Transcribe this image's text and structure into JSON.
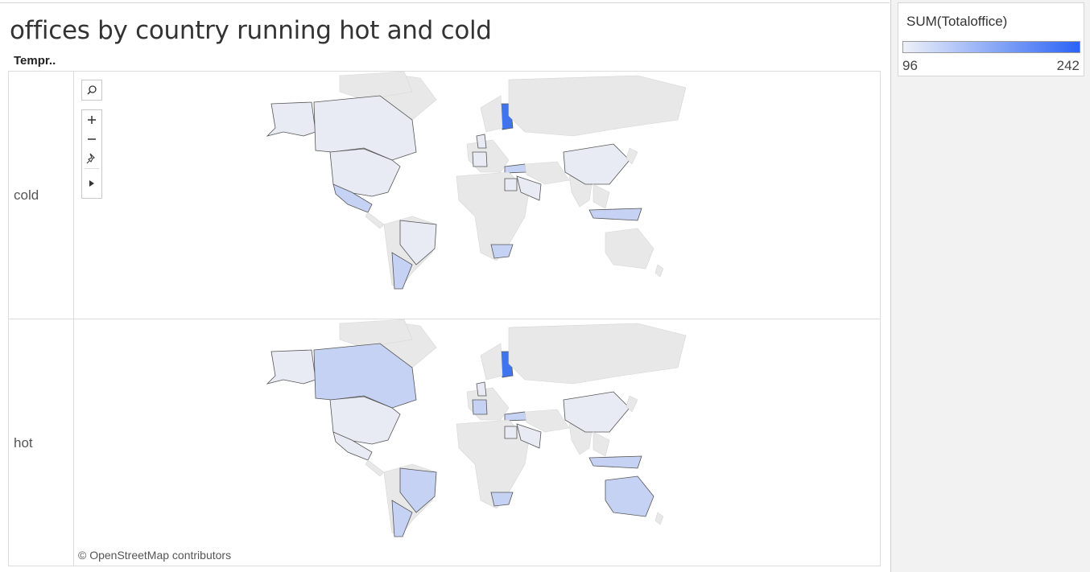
{
  "title": "offices by country running hot and cold",
  "row_header": "Tempr..",
  "rows": [
    {
      "label": "cold"
    },
    {
      "label": "hot"
    }
  ],
  "attribution": "© OpenStreetMap contributors",
  "legend": {
    "title": "SUM(Totaloffice)",
    "min": "96",
    "max": "242",
    "color_low": "#eef1f8",
    "color_high": "#2b63f5"
  },
  "map_toolbar": {
    "search_icon": "search-icon",
    "zoom_in_icon": "zoom-in-icon",
    "zoom_out_icon": "zoom-out-icon",
    "pin_icon": "pin-icon",
    "expand_icon": "expand-arrow-icon"
  },
  "map_colors": {
    "land": "#e8e8e8",
    "data_low": "#e8ebf3",
    "data_mid": "#c5d2f3",
    "data_high": "#3f74ee",
    "outline": "#555555"
  }
}
